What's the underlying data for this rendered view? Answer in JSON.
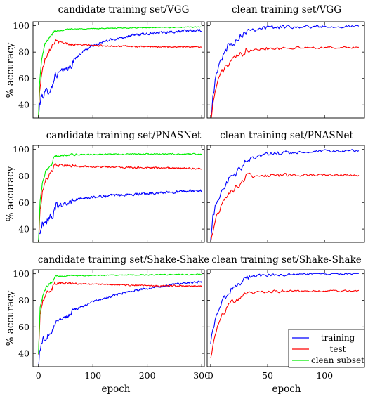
{
  "chart_data": [
    {
      "type": "line",
      "title": "candidate training set/VGG",
      "ylabel": "% accuracy",
      "xlabel": "",
      "xlim": [
        -10,
        305
      ],
      "ylim": [
        30,
        103
      ],
      "xticks": [
        0,
        100,
        200,
        300
      ],
      "yticks": [
        40,
        60,
        80,
        100
      ],
      "series": [
        {
          "name": "training",
          "color": "#0000ff",
          "anchors": [
            [
              0,
              30
            ],
            [
              2,
              40
            ],
            [
              5,
              46
            ],
            [
              15,
              50
            ],
            [
              25,
              53
            ],
            [
              27,
              58
            ],
            [
              30,
              62
            ],
            [
              40,
              65
            ],
            [
              55,
              68
            ],
            [
              62,
              69
            ],
            [
              63,
              73
            ],
            [
              80,
              80
            ],
            [
              100,
              85
            ],
            [
              130,
              89
            ],
            [
              170,
              92.5
            ],
            [
              220,
              95
            ],
            [
              300,
              96.5
            ]
          ],
          "noise": 2.5
        },
        {
          "name": "test",
          "color": "#ff0000",
          "anchors": [
            [
              0,
              30
            ],
            [
              2,
              50
            ],
            [
              6,
              64
            ],
            [
              12,
              75
            ],
            [
              20,
              82
            ],
            [
              30,
              88
            ],
            [
              40,
              87.5
            ],
            [
              60,
              86
            ],
            [
              100,
              85
            ],
            [
              150,
              84.5
            ],
            [
              200,
              84
            ],
            [
              300,
              84
            ]
          ],
          "noise": 1.4
        },
        {
          "name": "clean subset",
          "color": "#00ee00",
          "anchors": [
            [
              0,
              30
            ],
            [
              2,
              56
            ],
            [
              6,
              75
            ],
            [
              12,
              86
            ],
            [
              20,
              91
            ],
            [
              30,
              96
            ],
            [
              60,
              97.5
            ],
            [
              120,
              98
            ],
            [
              200,
              98.5
            ],
            [
              300,
              99
            ]
          ],
          "noise": 0.8
        }
      ]
    },
    {
      "type": "line",
      "title": "clean training set/VGG",
      "xlabel": "",
      "xlim": [
        -3,
        135
      ],
      "ylim": [
        30,
        103
      ],
      "xticks": [
        0,
        50,
        100
      ],
      "yticks": [
        40,
        60,
        80,
        100
      ],
      "series": [
        {
          "name": "training",
          "color": "#0000ff",
          "anchors": [
            [
              0,
              28
            ],
            [
              2,
              48
            ],
            [
              5,
              62
            ],
            [
              10,
              76
            ],
            [
              15,
              84
            ],
            [
              20,
              88
            ],
            [
              28,
              94
            ],
            [
              30,
              96.5
            ],
            [
              40,
              98
            ],
            [
              60,
              99
            ],
            [
              100,
              99.5
            ],
            [
              130,
              99.5
            ]
          ],
          "noise": 2.8
        },
        {
          "name": "test",
          "color": "#ff0000",
          "anchors": [
            [
              0,
              28
            ],
            [
              3,
              45
            ],
            [
              6,
              58
            ],
            [
              10,
              65
            ],
            [
              15,
              70
            ],
            [
              20,
              74
            ],
            [
              29,
              79
            ],
            [
              31,
              82.5
            ],
            [
              50,
              83
            ],
            [
              100,
              83.5
            ],
            [
              130,
              83.5
            ]
          ],
          "noise": 2.2
        }
      ]
    },
    {
      "type": "line",
      "title": "candidate training set/PNASNet",
      "ylabel": "% accuracy",
      "xlabel": "",
      "xlim": [
        -10,
        305
      ],
      "ylim": [
        30,
        103
      ],
      "xticks": [
        0,
        100,
        200,
        300
      ],
      "yticks": [
        40,
        60,
        80,
        100
      ],
      "series": [
        {
          "name": "training",
          "color": "#0000ff",
          "anchors": [
            [
              0,
              32
            ],
            [
              2,
              38
            ],
            [
              8,
              44
            ],
            [
              20,
              48
            ],
            [
              29,
              52
            ],
            [
              32,
              57
            ],
            [
              60,
              60
            ],
            [
              62,
              62
            ],
            [
              100,
              64
            ],
            [
              200,
              67
            ],
            [
              300,
              69
            ]
          ],
          "noise": 2.5
        },
        {
          "name": "test",
          "color": "#ff0000",
          "anchors": [
            [
              0,
              30
            ],
            [
              3,
              55
            ],
            [
              8,
              70
            ],
            [
              15,
              78
            ],
            [
              25,
              83
            ],
            [
              30,
              88
            ],
            [
              60,
              87.5
            ],
            [
              150,
              86.5
            ],
            [
              300,
              85.5
            ]
          ],
          "noise": 1.6
        },
        {
          "name": "clean subset",
          "color": "#00ee00",
          "anchors": [
            [
              0,
              30
            ],
            [
              3,
              60
            ],
            [
              8,
              77
            ],
            [
              15,
              85
            ],
            [
              25,
              89
            ],
            [
              30,
              95
            ],
            [
              60,
              96
            ],
            [
              150,
              96.5
            ],
            [
              300,
              96.5
            ]
          ],
          "noise": 1.2
        }
      ]
    },
    {
      "type": "line",
      "title": "clean training set/PNASNet",
      "xlabel": "",
      "xlim": [
        -3,
        135
      ],
      "ylim": [
        30,
        103
      ],
      "xticks": [
        0,
        50,
        100
      ],
      "yticks": [
        40,
        60,
        80,
        100
      ],
      "series": [
        {
          "name": "training",
          "color": "#0000ff",
          "anchors": [
            [
              0,
              30
            ],
            [
              2,
              48
            ],
            [
              5,
              60
            ],
            [
              10,
              70
            ],
            [
              15,
              76
            ],
            [
              20,
              80
            ],
            [
              28,
              86
            ],
            [
              30,
              92
            ],
            [
              40,
              95
            ],
            [
              60,
              97
            ],
            [
              100,
              98.5
            ],
            [
              130,
              99
            ]
          ],
          "noise": 2.6
        },
        {
          "name": "test",
          "color": "#ff0000",
          "anchors": [
            [
              0,
              28
            ],
            [
              3,
              42
            ],
            [
              6,
              52
            ],
            [
              10,
              60
            ],
            [
              15,
              66
            ],
            [
              20,
              70
            ],
            [
              28,
              75
            ],
            [
              30,
              79
            ],
            [
              40,
              80.5
            ],
            [
              80,
              80.5
            ],
            [
              130,
              80.5
            ]
          ],
          "noise": 2.2
        }
      ]
    },
    {
      "type": "line",
      "title": "candidate training set/Shake-Shake",
      "ylabel": "% accuracy",
      "xlabel": "epoch",
      "xlim": [
        -10,
        305
      ],
      "ylim": [
        30,
        103
      ],
      "xticks": [
        0,
        100,
        200,
        300
      ],
      "yticks": [
        40,
        60,
        80,
        100
      ],
      "series": [
        {
          "name": "training",
          "color": "#0000ff",
          "anchors": [
            [
              0,
              30
            ],
            [
              2,
              42
            ],
            [
              8,
              50
            ],
            [
              15,
              53
            ],
            [
              25,
              56
            ],
            [
              28,
              59
            ],
            [
              30,
              63
            ],
            [
              40,
              66
            ],
            [
              55,
              68
            ],
            [
              60,
              70
            ],
            [
              63,
              72
            ],
            [
              100,
              79
            ],
            [
              150,
              85
            ],
            [
              200,
              89
            ],
            [
              250,
              92
            ],
            [
              300,
              94
            ]
          ],
          "noise": 2.0
        },
        {
          "name": "test",
          "color": "#ff0000",
          "anchors": [
            [
              0,
              40
            ],
            [
              3,
              70
            ],
            [
              8,
              80
            ],
            [
              15,
              86
            ],
            [
              25,
              89
            ],
            [
              30,
              93
            ],
            [
              60,
              92.5
            ],
            [
              120,
              92
            ],
            [
              200,
              91
            ],
            [
              300,
              90.5
            ]
          ],
          "noise": 1.3
        },
        {
          "name": "clean subset",
          "color": "#00ee00",
          "anchors": [
            [
              0,
              40
            ],
            [
              3,
              74
            ],
            [
              8,
              84
            ],
            [
              15,
              90
            ],
            [
              25,
              94
            ],
            [
              30,
              97.5
            ],
            [
              60,
              98.5
            ],
            [
              150,
              99
            ],
            [
              300,
              99.5
            ]
          ],
          "noise": 0.9
        }
      ]
    },
    {
      "type": "line",
      "title": "clean training set/Shake-Shake",
      "xlabel": "epoch",
      "xlim": [
        -3,
        135
      ],
      "ylim": [
        30,
        103
      ],
      "xticks": [
        0,
        50,
        100
      ],
      "yticks": [
        40,
        60,
        80,
        100
      ],
      "series": [
        {
          "name": "training",
          "color": "#0000ff",
          "anchors": [
            [
              0,
              47
            ],
            [
              2,
              58
            ],
            [
              5,
              68
            ],
            [
              10,
              78
            ],
            [
              15,
              85
            ],
            [
              20,
              90
            ],
            [
              28,
              94
            ],
            [
              30,
              96
            ],
            [
              40,
              98.5
            ],
            [
              60,
              99.5
            ],
            [
              100,
              100
            ],
            [
              130,
              100
            ]
          ],
          "noise": 2.0
        },
        {
          "name": "test",
          "color": "#ff0000",
          "anchors": [
            [
              0,
              36
            ],
            [
              3,
              50
            ],
            [
              6,
              61
            ],
            [
              10,
              69
            ],
            [
              15,
              75
            ],
            [
              20,
              79
            ],
            [
              28,
              82.5
            ],
            [
              30,
              85.5
            ],
            [
              40,
              86.5
            ],
            [
              70,
              87
            ],
            [
              130,
              87
            ]
          ],
          "noise": 1.8
        }
      ]
    }
  ],
  "legend": {
    "placement": "bottom-right of last panel",
    "entries": [
      {
        "label": "training",
        "color": "#0000ff"
      },
      {
        "label": "test",
        "color": "#ff0000"
      },
      {
        "label": "clean subset",
        "color": "#00ee00"
      }
    ]
  }
}
